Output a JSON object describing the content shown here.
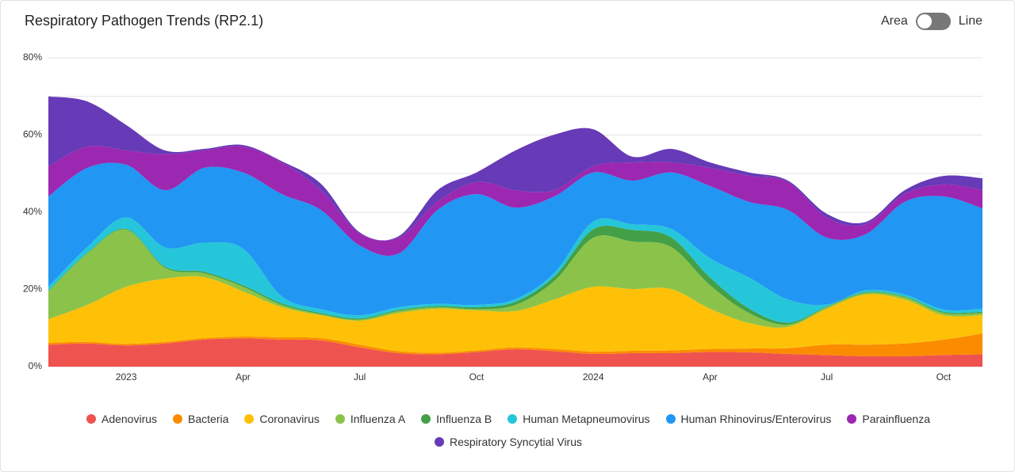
{
  "toggle": {
    "left": "Area",
    "right": "Line",
    "selected": "Area"
  },
  "chart_data": {
    "type": "area",
    "stacked": true,
    "title": "Respiratory Pathogen Trends (RP2.1)",
    "x": [
      "2022-11",
      "2022-12",
      "2023-01",
      "2023-02",
      "2023-03",
      "2023-04",
      "2023-05",
      "2023-06",
      "2023-07",
      "2023-08",
      "2023-09",
      "2023-10",
      "2023-11",
      "2023-12",
      "2024-01",
      "2024-02",
      "2024-03",
      "2024-04",
      "2024-05",
      "2024-06",
      "2024-07",
      "2024-08",
      "2024-09",
      "2024-10",
      "2024-11"
    ],
    "xlim": [
      "2022-11",
      "2024-11"
    ],
    "xticks": [
      {
        "value": "2023-01",
        "label": "2023"
      },
      {
        "value": "2023-04",
        "label": "Apr"
      },
      {
        "value": "2023-07",
        "label": "Jul"
      },
      {
        "value": "2023-10",
        "label": "Oct"
      },
      {
        "value": "2024-01",
        "label": "2024"
      },
      {
        "value": "2024-04",
        "label": "Apr"
      },
      {
        "value": "2024-07",
        "label": "Jul"
      },
      {
        "value": "2024-10",
        "label": "Oct"
      }
    ],
    "ylim": [
      0,
      80
    ],
    "yticks": [
      {
        "value": 0,
        "label": "0%"
      },
      {
        "value": 20,
        "label": "20%"
      },
      {
        "value": 40,
        "label": "40%"
      },
      {
        "value": 60,
        "label": "60%"
      },
      {
        "value": 80,
        "label": "80%"
      }
    ],
    "minor_yticks": [
      10,
      30,
      50,
      70
    ],
    "grid": true,
    "legend": "bottom",
    "series": [
      {
        "name": "Adenovirus",
        "color": "#ef5350",
        "values": [
          5.7,
          6,
          5.5,
          6,
          7,
          7.3,
          7,
          6.8,
          5,
          3.5,
          3.2,
          3.8,
          4.5,
          4,
          3.3,
          3.5,
          3.5,
          3.8,
          3.7,
          3.3,
          3,
          2.7,
          2.7,
          3,
          3.2
        ]
      },
      {
        "name": "Bacteria",
        "color": "#fb8c00",
        "values": [
          0.5,
          0.4,
          0.4,
          0.4,
          0.4,
          0.5,
          0.6,
          0.6,
          0.7,
          0.5,
          0.4,
          0.4,
          0.5,
          0.6,
          0.6,
          0.6,
          0.7,
          0.8,
          1,
          1.5,
          2.7,
          3,
          3.3,
          4,
          5.4
        ]
      },
      {
        "name": "Coronavirus",
        "color": "#ffc107",
        "values": [
          6.1,
          9.6,
          14.8,
          16.4,
          15.8,
          11.7,
          7.8,
          5.9,
          6.2,
          9.9,
          11.4,
          10.4,
          9.4,
          12.8,
          16.8,
          16,
          15.9,
          10.4,
          6.6,
          5.5,
          9.3,
          13,
          11.4,
          6.3,
          4.7
        ]
      },
      {
        "name": "Influenza A",
        "color": "#8bc34a",
        "values": [
          7.2,
          13.3,
          14.8,
          2.8,
          1,
          1.2,
          0.6,
          0.3,
          0.3,
          0.5,
          0.4,
          0.3,
          1.6,
          4.8,
          12.7,
          12.3,
          10.9,
          6.1,
          2.6,
          0.6,
          0.4,
          0.4,
          0.6,
          0.6,
          0.6
        ]
      },
      {
        "name": "Influenza B",
        "color": "#43a047",
        "values": [
          0.2,
          0.2,
          0.2,
          0.3,
          0.4,
          0.4,
          0.4,
          0.3,
          0.3,
          0.3,
          0.3,
          0.5,
          0.8,
          1.2,
          2.2,
          3,
          2.5,
          2,
          1.2,
          0.5,
          0.2,
          0.2,
          0.2,
          0.3,
          0.3
        ]
      },
      {
        "name": "Human Metapneumovirus",
        "color": "#26c6da",
        "values": [
          1,
          1.5,
          3,
          5,
          7.5,
          9.5,
          1.8,
          1,
          0.8,
          0.7,
          0.6,
          0.6,
          0.7,
          0.9,
          2,
          1.5,
          2.2,
          5,
          8,
          6,
          0.5,
          0.5,
          0.5,
          0.6,
          0.8
        ]
      },
      {
        "name": "Human Rhinovirus/Enterovirus",
        "color": "#2196f3",
        "values": [
          23.4,
          20.5,
          13.6,
          14.8,
          19.4,
          19.7,
          26.5,
          25.7,
          18.1,
          13.9,
          24.3,
          28.7,
          23.7,
          19.8,
          12.7,
          11.3,
          14.6,
          18.7,
          19.6,
          23.2,
          17.3,
          14.5,
          24,
          29.3,
          26
        ]
      },
      {
        "name": "Parainfluenza",
        "color": "#9c27b0",
        "values": [
          7.8,
          5.5,
          3.7,
          9.3,
          4.5,
          6.7,
          8.2,
          5.1,
          3.1,
          4.1,
          2.1,
          3.1,
          4.5,
          1.6,
          1.6,
          4.7,
          2.6,
          4.7,
          6.7,
          7.2,
          5.2,
          2.6,
          2,
          3.1,
          4.7
        ]
      },
      {
        "name": "Respiratory Syncytial Virus",
        "color": "#673ab7",
        "values": [
          18.1,
          11.7,
          6.6,
          1,
          0.4,
          0.4,
          0.3,
          1.7,
          0.3,
          0.4,
          3,
          2.5,
          10.3,
          14.4,
          9.6,
          1.5,
          3.5,
          1.4,
          0.9,
          0.4,
          1,
          0.6,
          1,
          2.2,
          3.1
        ]
      }
    ]
  }
}
